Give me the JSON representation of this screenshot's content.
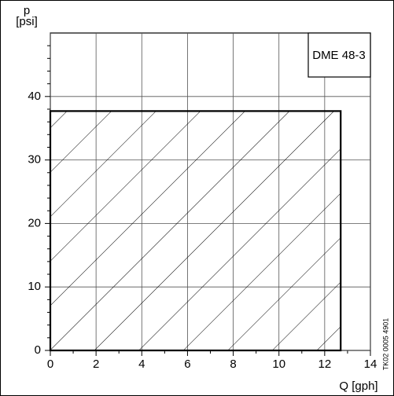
{
  "chart_data": {
    "type": "area",
    "y_label": "p",
    "y_unit": "[psi]",
    "x_label": "Q [gph]",
    "annotation": "DME 48-3",
    "side_note": "TK02 0005 4901",
    "x": [
      0,
      12.7
    ],
    "values": [
      37.7,
      37.7
    ],
    "xlim": [
      0,
      14
    ],
    "xticks": [
      0,
      2,
      4,
      6,
      8,
      10,
      12,
      14
    ],
    "ylim": [
      0,
      50
    ],
    "yticks": [
      0,
      10,
      20,
      30,
      40
    ],
    "minor_xticks": [
      1,
      3,
      5,
      7,
      9,
      11,
      13
    ],
    "minor_yticks": [
      2,
      4,
      6,
      8,
      12,
      14,
      16,
      18,
      22,
      24,
      26,
      28,
      32,
      34,
      36,
      38,
      42,
      44,
      46,
      48
    ],
    "grid": true,
    "color": "#000000"
  }
}
